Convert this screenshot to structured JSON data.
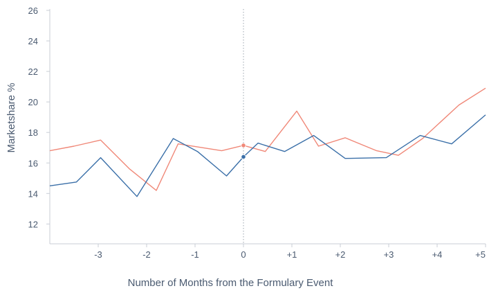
{
  "chart_data": {
    "type": "line",
    "xlabel": "Number of Months from the Formulary Event",
    "ylabel": "Marketshare %",
    "xlim": [
      -4,
      5
    ],
    "ylim": [
      10.7,
      26
    ],
    "x_ticks": [
      -3,
      -2,
      -1,
      0,
      1,
      2,
      3,
      4,
      5
    ],
    "x_tick_labels": [
      "-3",
      "-2",
      "-1",
      "0",
      "+1",
      "+2",
      "+3",
      "+4",
      "+5"
    ],
    "y_ticks": [
      12,
      14,
      16,
      18,
      20,
      22,
      24,
      26
    ],
    "y_tick_labels": [
      "12",
      "14",
      "16",
      "18",
      "20",
      "22",
      "24",
      "26"
    ],
    "grid": false,
    "event_line_x": 0,
    "series": [
      {
        "color": "#f08878",
        "x": [
          -4,
          -3.5,
          -2.95,
          -2.35,
          -1.8,
          -1.35,
          -0.95,
          -0.45,
          0,
          0.45,
          1.1,
          1.55,
          2.1,
          2.75,
          3.2,
          3.7,
          4.45,
          5
        ],
        "y": [
          16.8,
          17.1,
          17.5,
          15.6,
          14.2,
          17.25,
          17.05,
          16.8,
          17.15,
          16.75,
          19.4,
          17.1,
          17.65,
          16.8,
          16.5,
          17.6,
          19.8,
          20.9
        ]
      },
      {
        "color": "#3a6fa8",
        "x": [
          -4,
          -3.45,
          -2.95,
          -2.2,
          -1.45,
          -0.95,
          -0.35,
          0,
          0.3,
          0.85,
          1.45,
          2.1,
          2.95,
          3.65,
          4.3,
          5
        ],
        "y": [
          14.5,
          14.75,
          16.35,
          13.8,
          17.6,
          16.75,
          15.15,
          16.4,
          17.3,
          16.75,
          17.8,
          16.3,
          16.35,
          17.8,
          17.25,
          19.15
        ]
      }
    ],
    "markers": [
      {
        "x": 0,
        "y": 17.15,
        "color": "#f08878"
      },
      {
        "x": 0,
        "y": 16.4,
        "color": "#3a6fa8"
      }
    ]
  }
}
